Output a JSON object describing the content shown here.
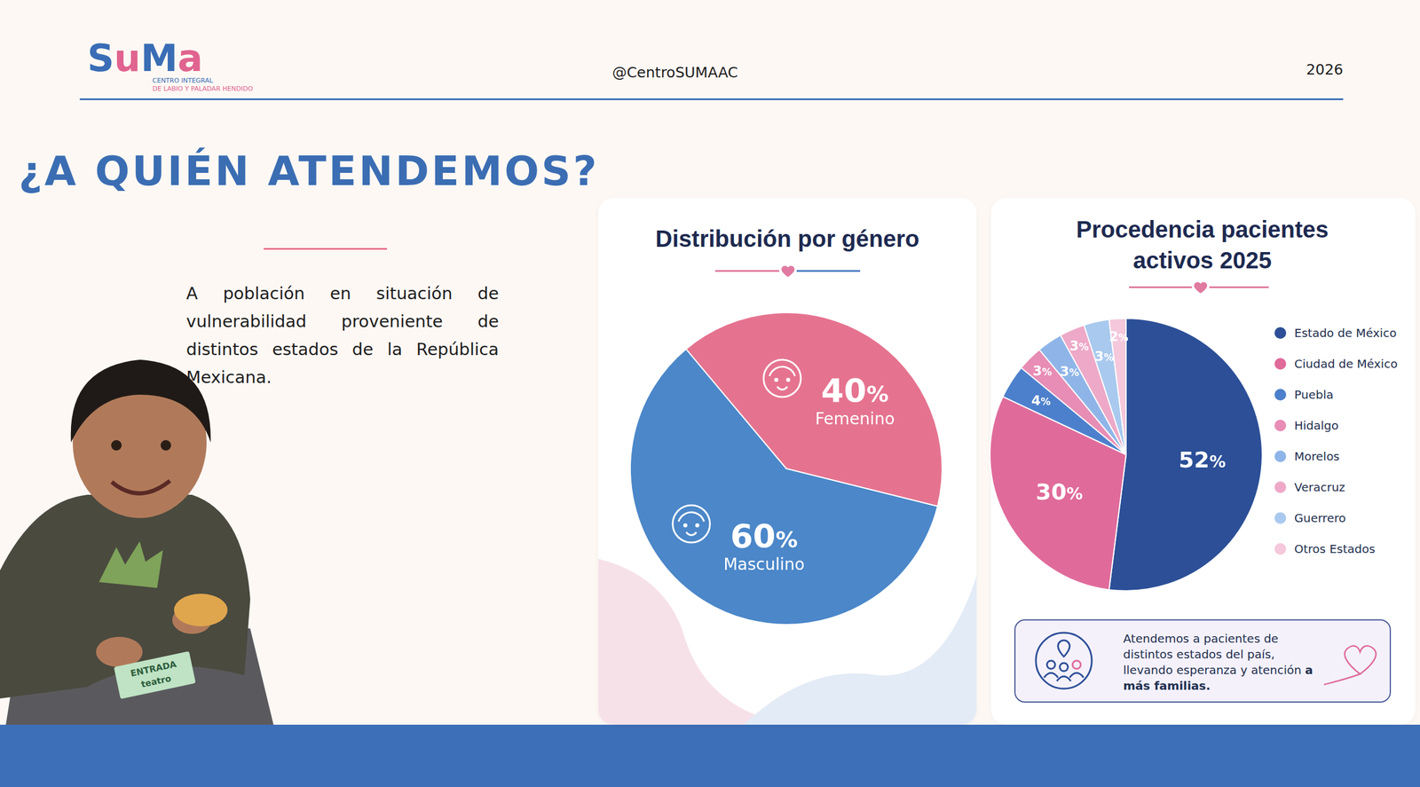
{
  "header": {
    "logo": {
      "name": "SuMa",
      "tagline": [
        "CENTRO INTEGRAL",
        "DE LABIO Y PALADAR HENDIDO"
      ]
    },
    "handle": "@CentroSUMAAC",
    "year": "2026"
  },
  "heading": "¿A QUIÉN ATENDEMOS?",
  "body": "A población en situación de vulnerabilidad proveniente de distintos estados de la República Mexicana.",
  "photo": {
    "ticket": [
      "ENTRADA",
      "teatro"
    ]
  },
  "chart_data": [
    {
      "type": "pie",
      "title": "Distribución por género",
      "categories": [
        "Femenino",
        "Masculino"
      ],
      "values": [
        40,
        60
      ],
      "value_labels": [
        "40%",
        "60%"
      ],
      "colors": [
        "#e5738f",
        "#4b87c9"
      ],
      "data_labels": true
    },
    {
      "type": "pie",
      "title": "Procedencia pacientes activos 2025",
      "categories": [
        "Estado de México",
        "Ciudad de México",
        "Puebla",
        "Hidalgo",
        "Morelos",
        "Veracruz",
        "Guerrero",
        "Otros Estados"
      ],
      "values": [
        52,
        30,
        4,
        3,
        3,
        3,
        3,
        2
      ],
      "value_labels": [
        "52%",
        "30%",
        "4%",
        "3%",
        "3%",
        "3%",
        "3%",
        "2%"
      ],
      "colors": [
        "#2c4f97",
        "#e06b9b",
        "#4d80cc",
        "#e88db5",
        "#8fb5e8",
        "#eea9c8",
        "#a9c9ee",
        "#f5c8dc"
      ],
      "data_labels": true,
      "legend": "right"
    }
  ],
  "note": {
    "text": "Atendemos a pacientes de distintos estados del país, llevando esperanza y atención",
    "emphasis": "a más familias."
  }
}
